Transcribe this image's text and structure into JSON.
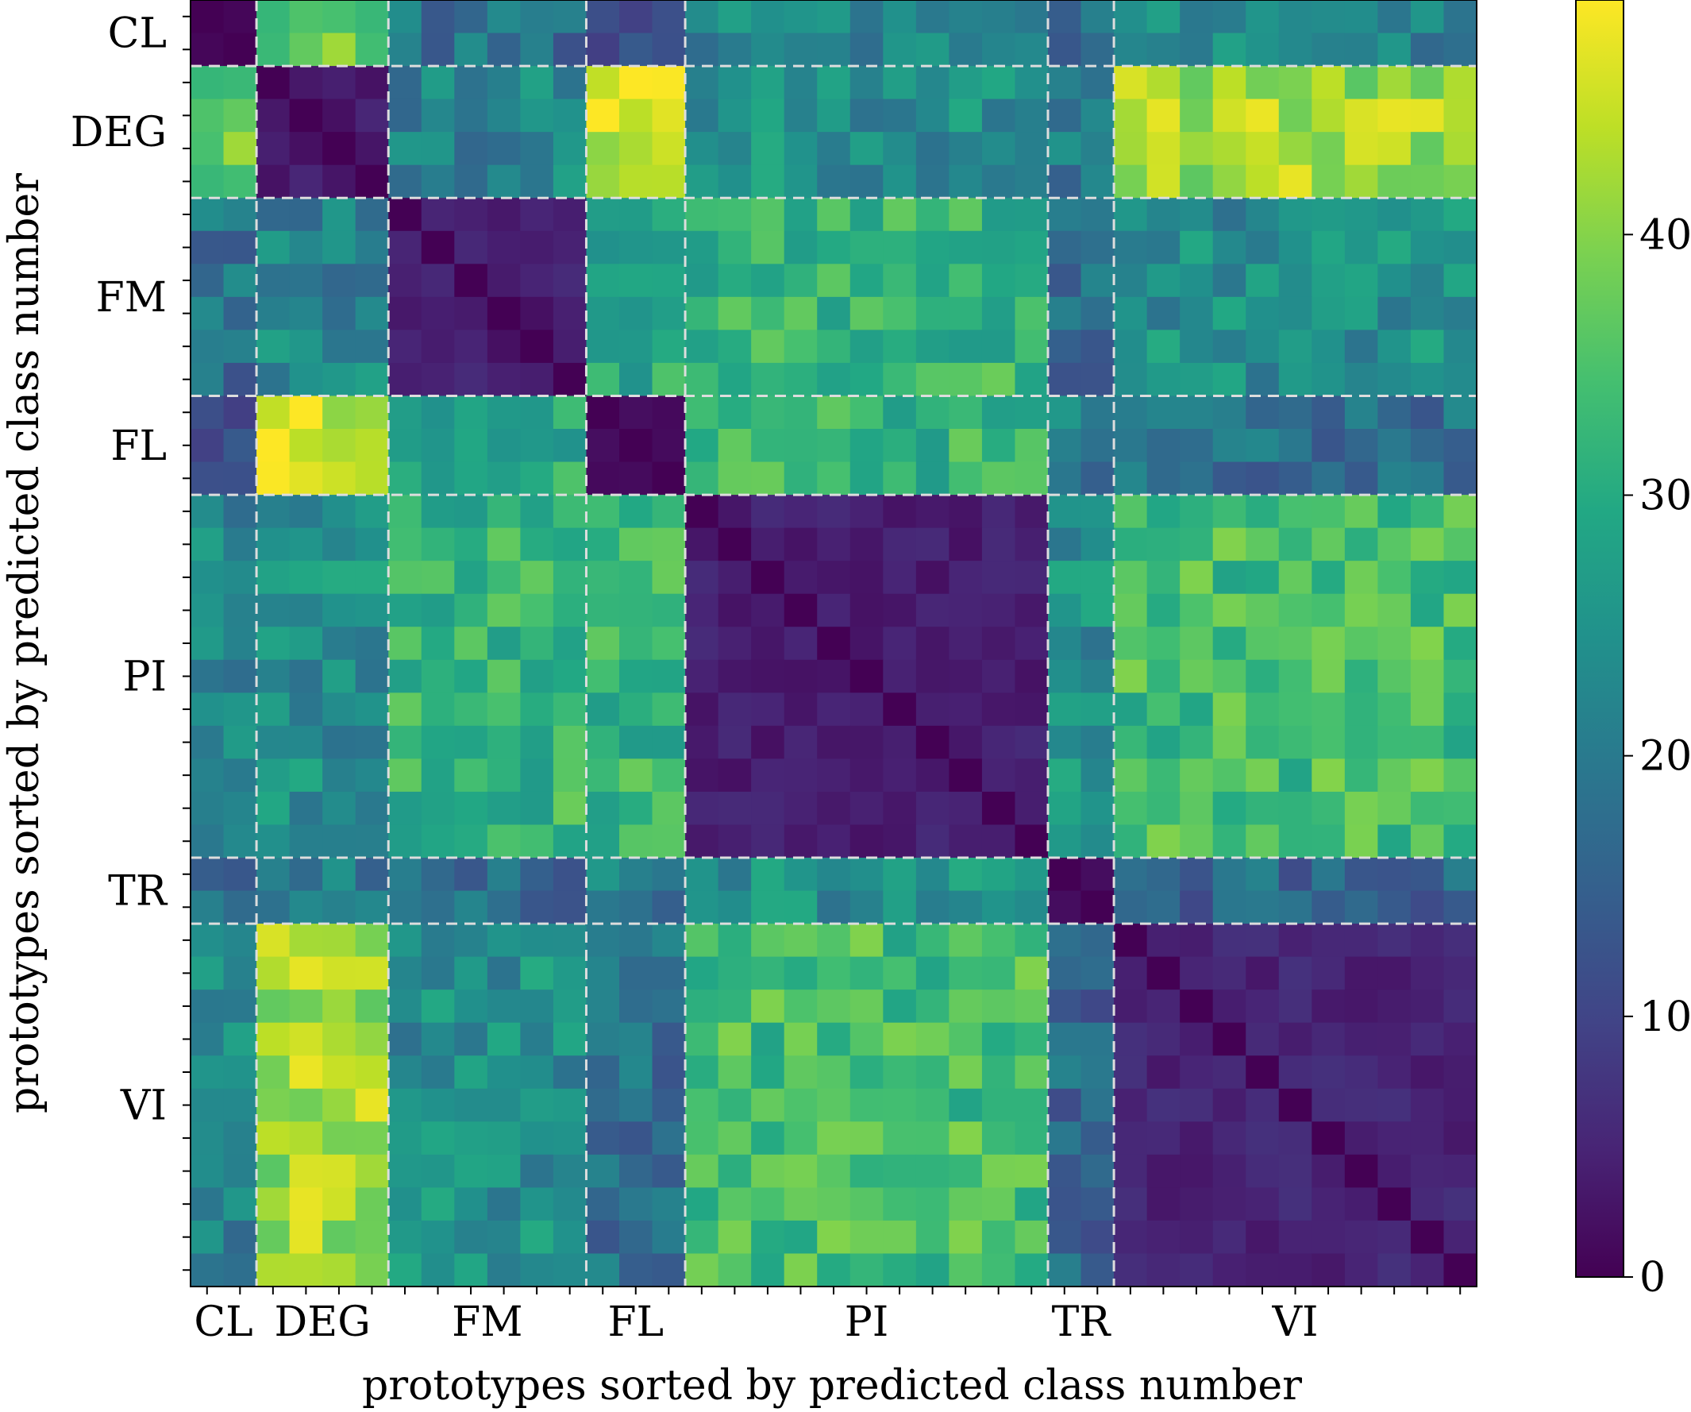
{
  "chart_data": {
    "type": "heatmap",
    "title": "",
    "xlabel": "prototypes sorted by predicted class number",
    "ylabel": "prototypes sorted by predicted class number",
    "classes": [
      {
        "name": "CL",
        "count": 2
      },
      {
        "name": "DEG",
        "count": 4
      },
      {
        "name": "FM",
        "count": 6
      },
      {
        "name": "FL",
        "count": 3
      },
      {
        "name": "PI",
        "count": 11
      },
      {
        "name": "TR",
        "count": 2
      },
      {
        "name": "VI",
        "count": 11
      }
    ],
    "grid_size": 39,
    "colorbar": {
      "colormap": "viridis",
      "range": [
        0,
        49
      ],
      "ticks": [
        0,
        10,
        20,
        30,
        40
      ],
      "tick_labels": [
        "0",
        "10",
        "20",
        "30",
        "40"
      ]
    },
    "separators": "white dashed lines at class boundaries",
    "class_distance_matrix": [
      [
        2,
        38,
        18,
        12,
        22,
        16,
        22
      ],
      [
        38,
        4,
        22,
        44,
        24,
        20,
        42
      ],
      [
        18,
        22,
        4,
        30,
        32,
        18,
        24
      ],
      [
        12,
        44,
        30,
        3,
        32,
        20,
        18
      ],
      [
        22,
        24,
        32,
        32,
        4,
        24,
        34
      ],
      [
        16,
        20,
        18,
        20,
        24,
        3,
        16
      ],
      [
        22,
        42,
        24,
        18,
        34,
        16,
        5
      ]
    ],
    "diagonal_value": 0
  }
}
